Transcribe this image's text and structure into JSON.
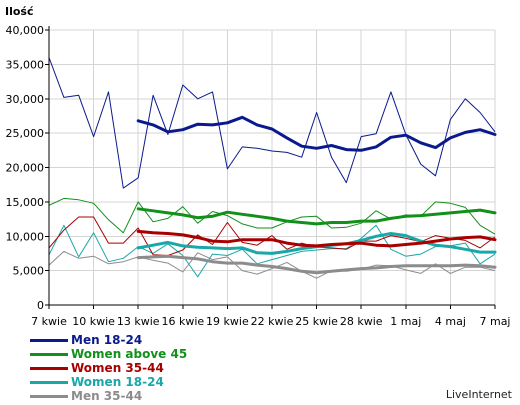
{
  "chart_data": {
    "type": "line",
    "ylabel": "Ilość",
    "xlabel": "",
    "ylim": [
      0,
      40000
    ],
    "yticks": [
      "0",
      "5,000",
      "10,000",
      "15,000",
      "20,000",
      "25,000",
      "30,000",
      "35,000",
      "40,000"
    ],
    "ytick_values": [
      0,
      5000,
      10000,
      15000,
      20000,
      25000,
      30000,
      35000,
      40000
    ],
    "xticks": [
      "7 kwie",
      "10 kwie",
      "13 kwie",
      "16 kwie",
      "19 kwie",
      "22 kwie",
      "25 kwie",
      "28 kwie",
      "1 maj",
      "4 maj",
      "7 maj"
    ],
    "xtick_index": [
      0,
      3,
      6,
      9,
      12,
      15,
      18,
      21,
      24,
      27,
      30
    ],
    "n_points": 31,
    "grid": true,
    "legend_position": "bottom-left",
    "series": [
      {
        "name": "Men 18-24",
        "color": "#0a1a8c",
        "daily": [
          36000,
          30200,
          30500,
          24500,
          31000,
          17000,
          18500,
          30500,
          24800,
          32000,
          30000,
          31000,
          19800,
          23000,
          22800,
          22400,
          22200,
          21500,
          28000,
          21500,
          17800,
          24500,
          24900,
          31000,
          24800,
          20500,
          18800,
          27000,
          30000,
          28000,
          25200
        ],
        "avg_start": 6,
        "avg": [
          26800,
          26200,
          25200,
          25500,
          26300,
          26200,
          26500,
          27300,
          26200,
          25600,
          24300,
          23100,
          22800,
          23200,
          22600,
          22500,
          23000,
          24400,
          24700,
          23600,
          22900,
          24300,
          25100,
          25500,
          24800
        ]
      },
      {
        "name": "Women above 45",
        "color": "#12901a",
        "daily": [
          14500,
          15500,
          15300,
          14800,
          12400,
          10500,
          15000,
          12100,
          12600,
          14300,
          11900,
          13600,
          13000,
          11800,
          11200,
          11200,
          12100,
          12800,
          12900,
          11200,
          11300,
          11900,
          13700,
          12500,
          13100,
          12900,
          15000,
          14800,
          14200,
          11600,
          10300
        ],
        "avg_start": 6,
        "avg": [
          14000,
          13700,
          13400,
          13100,
          12700,
          12900,
          13500,
          13200,
          12900,
          12600,
          12200,
          12000,
          11800,
          12000,
          12000,
          12200,
          12200,
          12600,
          12900,
          13000,
          13200,
          13400,
          13600,
          13800,
          13400
        ]
      },
      {
        "name": "Women 35-44",
        "color": "#a80000",
        "daily": [
          8300,
          10900,
          12800,
          12800,
          9000,
          9000,
          11200,
          7300,
          7200,
          8000,
          10200,
          8800,
          12000,
          9100,
          8700,
          10100,
          8100,
          9000,
          8400,
          8300,
          8100,
          9300,
          9300,
          10100,
          9700,
          9200,
          10100,
          9700,
          9400,
          8300,
          9900
        ],
        "avg_start": 6,
        "avg": [
          10700,
          10500,
          10400,
          10200,
          9800,
          9300,
          9200,
          9500,
          9500,
          9500,
          9000,
          8700,
          8600,
          8800,
          8900,
          9000,
          8700,
          8600,
          8800,
          9000,
          9300,
          9600,
          9800,
          9900,
          9500
        ]
      },
      {
        "name": "Women 18-24",
        "color": "#1aa7a7",
        "daily": [
          7300,
          11600,
          7000,
          10500,
          6300,
          6800,
          8500,
          7500,
          8900,
          7200,
          4100,
          7400,
          7200,
          8100,
          6000,
          6600,
          7200,
          7800,
          8000,
          8200,
          8200,
          9700,
          11600,
          8100,
          7100,
          7400,
          8500,
          8600,
          9000,
          6000,
          7400
        ],
        "avg_start": 6,
        "avg": [
          8300,
          8700,
          9100,
          8600,
          8400,
          8300,
          8200,
          8300,
          7600,
          7500,
          7800,
          8200,
          8500,
          8700,
          8900,
          9400,
          10000,
          10400,
          10100,
          9300,
          8700,
          8500,
          8100,
          7700,
          7700
        ]
      },
      {
        "name": "Men 35-44",
        "color": "#8c8c8c",
        "daily": [
          5800,
          7800,
          6800,
          7100,
          6000,
          6300,
          7000,
          6500,
          6100,
          4800,
          7600,
          6600,
          7000,
          5000,
          4500,
          5300,
          6200,
          4900,
          3900,
          5000,
          4900,
          5200,
          5800,
          5700,
          5100,
          4600,
          6000,
          4600,
          5500,
          5500,
          5000
        ],
        "avg_start": 6,
        "avg": [
          6900,
          7000,
          7100,
          6900,
          6700,
          6300,
          6100,
          6100,
          5800,
          5600,
          5300,
          4900,
          4700,
          4900,
          5100,
          5300,
          5400,
          5600,
          5700,
          5700,
          5700,
          5700,
          5800,
          5700,
          5500
        ]
      }
    ]
  },
  "legend": [
    {
      "label": "Men 18-24",
      "color": "#0a1a8c"
    },
    {
      "label": "Women above 45",
      "color": "#12901a"
    },
    {
      "label": "Women 35-44",
      "color": "#a80000"
    },
    {
      "label": "Women 18-24",
      "color": "#1aa7a7"
    },
    {
      "label": "Men 35-44",
      "color": "#8c8c8c"
    }
  ],
  "footer": {
    "brand": "LiveInternet"
  }
}
